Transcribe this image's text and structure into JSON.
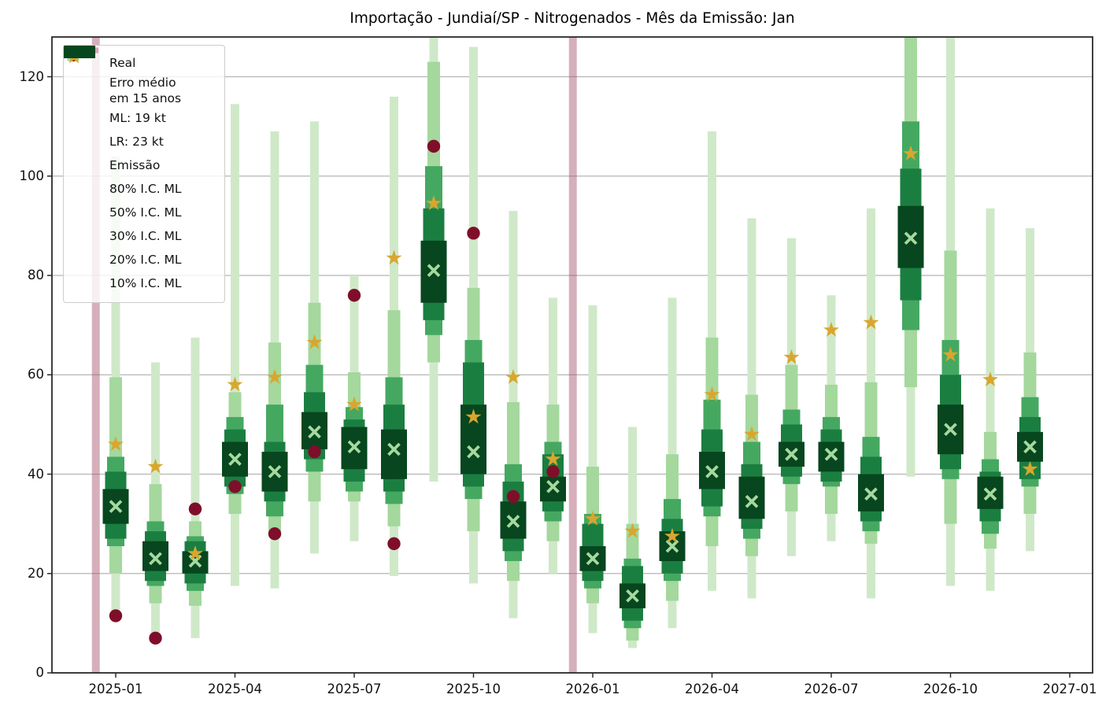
{
  "title": "Importação - Jundiaí/SP - Nitrogenados - Mês da Emissão: Jan",
  "chart_data": {
    "type": "candlestick-fan",
    "title": "Importação - Jundiaí/SP - Nitrogenados - Mês da Emissão: Jan",
    "ylim": [
      0,
      128
    ],
    "y_ticks": [
      0,
      20,
      40,
      60,
      80,
      100,
      120
    ],
    "x_tick_labels": [
      "2025-01",
      "2025-04",
      "2025-07",
      "2025-10",
      "2026-01",
      "2026-04",
      "2026-07",
      "2026-10",
      "2027-01"
    ],
    "x_tick_month_index": [
      0,
      3,
      6,
      9,
      12,
      15,
      18,
      21,
      24
    ],
    "grid": true,
    "legend_position": "upper left",
    "emission": {
      "label": "Emissão",
      "month_offsets": [
        -0.5,
        11.5
      ]
    },
    "legend": {
      "items": [
        {
          "marker": "dot",
          "label": "Real"
        },
        {
          "marker": "none",
          "lines": [
            "Erro médio",
            "em 15 anos"
          ]
        },
        {
          "marker": "x",
          "label": "ML: 19 kt"
        },
        {
          "marker": "star",
          "label": "LR: 23 kt"
        },
        {
          "marker": "hline",
          "label": "Emissão"
        },
        {
          "marker": "swatch",
          "color_key": "ci80",
          "label": "80% I.C. ML"
        },
        {
          "marker": "swatch",
          "color_key": "ci50",
          "label": "50% I.C. ML"
        },
        {
          "marker": "swatch",
          "color_key": "ci30",
          "label": "30% I.C. ML"
        },
        {
          "marker": "swatch",
          "color_key": "ci20",
          "label": "20% I.C. ML"
        },
        {
          "marker": "swatch",
          "color_key": "ci10",
          "label": "10% I.C. ML"
        }
      ]
    },
    "colors": {
      "ci80": "#cfe9c8",
      "ci50": "#a4d89d",
      "ci30": "#45a861",
      "ci20": "#1b7e41",
      "ci10": "#07461e",
      "ml": "#a6d99f",
      "lr": "#d9a62e",
      "real": "#7f0e2a",
      "emission": "rgba(164,77,101,0.45)",
      "grid": "#b4b4b4",
      "axis": "#2a2a2a"
    },
    "points": [
      {
        "month": "2025-01",
        "ml": 33.5,
        "lr": 46,
        "real": 11.5,
        "ci10": [
          30,
          37
        ],
        "ci20": [
          27,
          40.5
        ],
        "ci30": [
          25.5,
          43.5
        ],
        "ci50": [
          20,
          59.5
        ],
        "ci80": [
          12.5,
          104
        ]
      },
      {
        "month": "2025-02",
        "ml": 23,
        "lr": 41.5,
        "real": 7,
        "ci10": [
          20.5,
          26.5
        ],
        "ci20": [
          18.5,
          28.5
        ],
        "ci30": [
          17.5,
          30.5
        ],
        "ci50": [
          14,
          38
        ],
        "ci80": [
          8,
          62.5
        ]
      },
      {
        "month": "2025-03",
        "ml": 22.5,
        "lr": 24,
        "real": 33,
        "ci10": [
          20,
          24.5
        ],
        "ci20": [
          18,
          26.5
        ],
        "ci30": [
          16.5,
          27.5
        ],
        "ci50": [
          13.5,
          30.5
        ],
        "ci80": [
          7,
          67.5
        ]
      },
      {
        "month": "2025-04",
        "ml": 43,
        "lr": 58,
        "real": 37.5,
        "ci10": [
          39.5,
          46.5
        ],
        "ci20": [
          37.5,
          49
        ],
        "ci30": [
          36,
          51.5
        ],
        "ci50": [
          32,
          56.5
        ],
        "ci80": [
          17.5,
          114.5
        ]
      },
      {
        "month": "2025-05",
        "ml": 40.5,
        "lr": 59.5,
        "real": 28,
        "ci10": [
          36.5,
          44.5
        ],
        "ci20": [
          34.5,
          46.5
        ],
        "ci30": [
          31.5,
          54
        ],
        "ci50": [
          27.5,
          66.5
        ],
        "ci80": [
          17,
          109
        ]
      },
      {
        "month": "2025-06",
        "ml": 48.5,
        "lr": 66.5,
        "real": 44.5,
        "ci10": [
          45,
          52.5
        ],
        "ci20": [
          43,
          56.5
        ],
        "ci30": [
          40.5,
          62
        ],
        "ci50": [
          34.5,
          74.5
        ],
        "ci80": [
          24,
          111
        ]
      },
      {
        "month": "2025-07",
        "ml": 45.5,
        "lr": 54,
        "real": 76,
        "ci10": [
          41,
          49.5
        ],
        "ci20": [
          38.5,
          51
        ],
        "ci30": [
          36.5,
          53.5
        ],
        "ci50": [
          34.5,
          60.5
        ],
        "ci80": [
          26.5,
          80
        ]
      },
      {
        "month": "2025-08",
        "ml": 45,
        "lr": 83.5,
        "real": 26,
        "ci10": [
          39,
          49
        ],
        "ci20": [
          36.5,
          54
        ],
        "ci30": [
          34,
          59.5
        ],
        "ci50": [
          29.5,
          73
        ],
        "ci80": [
          19.5,
          116
        ]
      },
      {
        "month": "2025-09",
        "ml": 81,
        "lr": 94.5,
        "real": 106,
        "ci10": [
          74.5,
          87
        ],
        "ci20": [
          71,
          93.5
        ],
        "ci30": [
          68,
          102
        ],
        "ci50": [
          62.5,
          123
        ],
        "ci80": [
          38.5,
          128
        ]
      },
      {
        "month": "2025-10",
        "ml": 44.5,
        "lr": 51.5,
        "real": 88.5,
        "ci10": [
          40,
          54
        ],
        "ci20": [
          37.5,
          62.5
        ],
        "ci30": [
          35,
          67
        ],
        "ci50": [
          28.5,
          77.5
        ],
        "ci80": [
          18,
          126
        ]
      },
      {
        "month": "2025-11",
        "ml": 30.5,
        "lr": 59.5,
        "real": 35.5,
        "ci10": [
          27,
          34.5
        ],
        "ci20": [
          24.5,
          38.5
        ],
        "ci30": [
          22.5,
          42
        ],
        "ci50": [
          18.5,
          54.5
        ],
        "ci80": [
          11,
          93
        ]
      },
      {
        "month": "2025-12",
        "ml": 37.5,
        "lr": 43,
        "real": 40.5,
        "ci10": [
          34.5,
          39.5
        ],
        "ci20": [
          32.5,
          44
        ],
        "ci30": [
          30.5,
          46.5
        ],
        "ci50": [
          26.5,
          54
        ],
        "ci80": [
          20,
          75.5
        ]
      },
      {
        "month": "2026-01",
        "ml": 23,
        "lr": 31,
        "real": null,
        "ci10": [
          20.5,
          25.5
        ],
        "ci20": [
          18.5,
          30
        ],
        "ci30": [
          17,
          32
        ],
        "ci50": [
          14,
          41.5
        ],
        "ci80": [
          8,
          74
        ]
      },
      {
        "month": "2026-02",
        "ml": 15.5,
        "lr": 28.5,
        "real": null,
        "ci10": [
          13,
          18
        ],
        "ci20": [
          10.5,
          21.5
        ],
        "ci30": [
          9,
          23
        ],
        "ci50": [
          6.5,
          30
        ],
        "ci80": [
          5,
          49.5
        ]
      },
      {
        "month": "2026-03",
        "ml": 25.5,
        "lr": 27.5,
        "real": null,
        "ci10": [
          22.5,
          28.5
        ],
        "ci20": [
          20,
          31
        ],
        "ci30": [
          18.5,
          35
        ],
        "ci50": [
          14.5,
          44
        ],
        "ci80": [
          9,
          75.5
        ]
      },
      {
        "month": "2026-04",
        "ml": 40.5,
        "lr": 56,
        "real": null,
        "ci10": [
          37,
          44.5
        ],
        "ci20": [
          33.5,
          49
        ],
        "ci30": [
          31.5,
          55
        ],
        "ci50": [
          25.5,
          67.5
        ],
        "ci80": [
          16.5,
          109
        ]
      },
      {
        "month": "2026-05",
        "ml": 34.5,
        "lr": 48,
        "real": null,
        "ci10": [
          31,
          39.5
        ],
        "ci20": [
          29,
          42
        ],
        "ci30": [
          27,
          46.5
        ],
        "ci50": [
          23.5,
          56
        ],
        "ci80": [
          15,
          91.5
        ]
      },
      {
        "month": "2026-06",
        "ml": 44,
        "lr": 63.5,
        "real": null,
        "ci10": [
          41.5,
          46.5
        ],
        "ci20": [
          39.5,
          50
        ],
        "ci30": [
          38,
          53
        ],
        "ci50": [
          32.5,
          62
        ],
        "ci80": [
          23.5,
          87.5
        ]
      },
      {
        "month": "2026-07",
        "ml": 44,
        "lr": 69,
        "real": null,
        "ci10": [
          40.5,
          46.5
        ],
        "ci20": [
          38.5,
          49
        ],
        "ci30": [
          37.5,
          51.5
        ],
        "ci50": [
          32,
          58
        ],
        "ci80": [
          26.5,
          76
        ]
      },
      {
        "month": "2026-08",
        "ml": 36,
        "lr": 70.5,
        "real": null,
        "ci10": [
          32.5,
          40
        ],
        "ci20": [
          30.5,
          43.5
        ],
        "ci30": [
          28.5,
          47.5
        ],
        "ci50": [
          26,
          58.5
        ],
        "ci80": [
          15,
          93.5
        ]
      },
      {
        "month": "2026-09",
        "ml": 87.5,
        "lr": 104.5,
        "real": null,
        "ci10": [
          81.5,
          94
        ],
        "ci20": [
          75,
          101.5
        ],
        "ci30": [
          69,
          111
        ],
        "ci50": [
          57.5,
          128
        ],
        "ci80": [
          39.5,
          128
        ]
      },
      {
        "month": "2026-10",
        "ml": 49,
        "lr": 64,
        "real": null,
        "ci10": [
          44,
          54
        ],
        "ci20": [
          41,
          60
        ],
        "ci30": [
          39,
          67
        ],
        "ci50": [
          30,
          85
        ],
        "ci80": [
          17.5,
          128
        ]
      },
      {
        "month": "2026-11",
        "ml": 36,
        "lr": 59,
        "real": null,
        "ci10": [
          33,
          39.5
        ],
        "ci20": [
          30.5,
          40.5
        ],
        "ci30": [
          28,
          43
        ],
        "ci50": [
          25,
          48.5
        ],
        "ci80": [
          16.5,
          93.5
        ]
      },
      {
        "month": "2026-12",
        "ml": 45.5,
        "lr": 41,
        "real": null,
        "ci10": [
          42.5,
          48.5
        ],
        "ci20": [
          39,
          51.5
        ],
        "ci30": [
          37.5,
          55.5
        ],
        "ci50": [
          32,
          64.5
        ],
        "ci80": [
          24.5,
          89.5
        ]
      }
    ]
  }
}
